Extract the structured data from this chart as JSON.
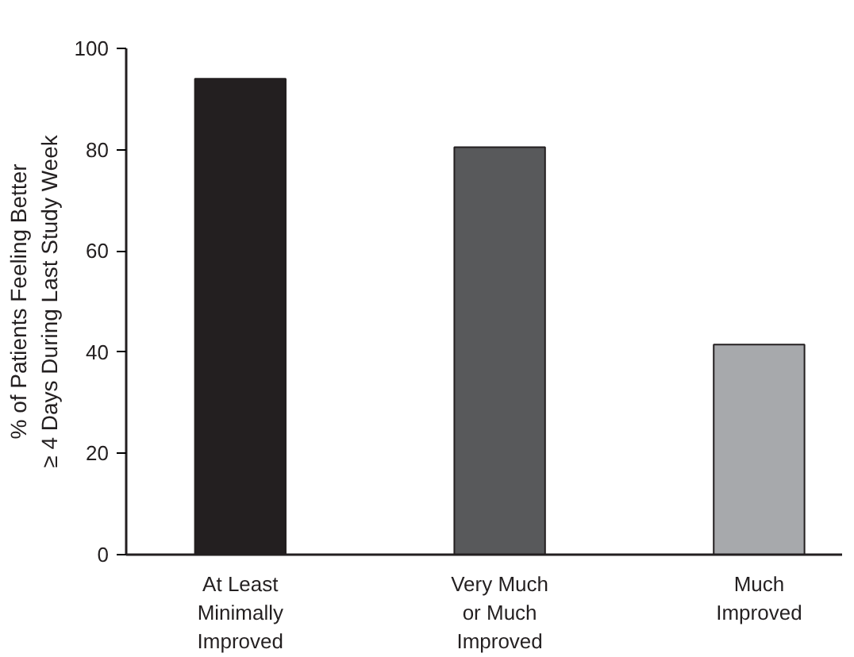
{
  "chart_data": {
    "type": "bar",
    "categories": [
      "At Least\nMinimally\nImproved",
      "Very Much\nor Much\nImproved",
      "Much\nImproved"
    ],
    "values": [
      94,
      80.5,
      41.5
    ],
    "colors": [
      "#231f20",
      "#58595b",
      "#a7a9ac"
    ],
    "ylabel": "% of Patients Feeling Better\n≥ 4 Days During Last Study Week",
    "ylim": [
      0,
      100
    ],
    "yticks": [
      0,
      20,
      40,
      60,
      80,
      100
    ],
    "grid": false
  }
}
